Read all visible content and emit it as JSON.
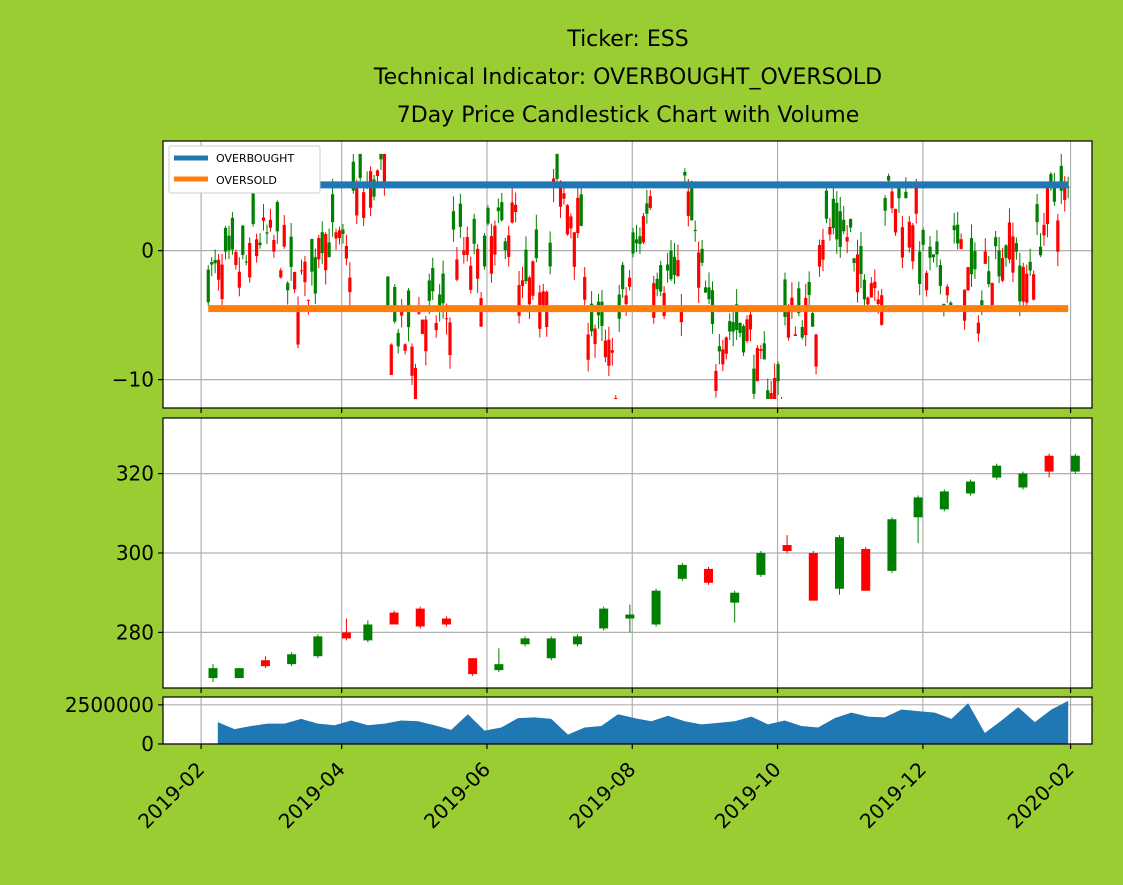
{
  "title": {
    "line1": "Ticker: ESS",
    "line2": "Technical Indicator: OVERBOUGHT_OVERSOLD",
    "line3": "7Day Price Candlestick Chart with Volume"
  },
  "colors": {
    "background": "#9acd32",
    "up": "#008000",
    "down": "#ff0000",
    "overbought": "#1f77b4",
    "oversold": "#ff7f0e",
    "volume": "#1f77b4",
    "grid": "#b0b0b0"
  },
  "x_axis": {
    "ticks": [
      "2019-02",
      "2019-04",
      "2019-06",
      "2019-08",
      "2019-10",
      "2019-12",
      "2020-02"
    ]
  },
  "chart_data": [
    {
      "panel": "indicator",
      "type": "candlestick",
      "x_range": [
        "2019-02-04",
        "2020-01-31"
      ],
      "ylim": [
        -12.2,
        8.5
      ],
      "yticks": [
        0,
        -10
      ],
      "ytick_labels": [
        "0",
        "−10"
      ],
      "legend": {
        "position": "top-left",
        "entries": [
          "OVERBOUGHT",
          "OVERSOLD"
        ]
      },
      "overbought": 5.1,
      "oversold": -4.5,
      "candle_count": 250,
      "candles": [
        {
          "date": "2019-02-08",
          "open": 1,
          "close": -2
        },
        {
          "date": "2019-02-22",
          "open": -1,
          "close": 1.5
        },
        {
          "date": "2019-03-08",
          "open": 0,
          "close": -3
        },
        {
          "date": "2019-03-22",
          "open": -2,
          "close": 2
        },
        {
          "date": "2019-04-05",
          "open": -1,
          "close": 4
        },
        {
          "date": "2019-04-19",
          "open": 6,
          "close": -5
        },
        {
          "date": "2019-05-03",
          "open": -8,
          "close": -5
        },
        {
          "date": "2019-05-17",
          "open": -5,
          "close": 1
        },
        {
          "date": "2019-05-31",
          "open": -2,
          "close": 0
        },
        {
          "date": "2019-06-14",
          "open": 3,
          "close": -4
        },
        {
          "date": "2019-06-28",
          "open": -1,
          "close": 5
        },
        {
          "date": "2019-07-12",
          "open": 2,
          "close": -4
        },
        {
          "date": "2019-07-26",
          "open": -10,
          "close": -6
        },
        {
          "date": "2019-08-09",
          "open": 5,
          "close": -1
        },
        {
          "date": "2019-08-23",
          "open": -3,
          "close": 5
        },
        {
          "date": "2019-09-06",
          "open": -9,
          "close": -6
        },
        {
          "date": "2019-09-20",
          "open": -6,
          "close": -9
        },
        {
          "date": "2019-10-04",
          "open": -11,
          "close": -5
        },
        {
          "date": "2019-10-18",
          "open": -5,
          "close": 2
        },
        {
          "date": "2019-11-01",
          "open": 1,
          "close": -2
        },
        {
          "date": "2019-11-15",
          "open": -2,
          "close": 4
        },
        {
          "date": "2019-11-29",
          "open": 3,
          "close": -1
        },
        {
          "date": "2019-12-13",
          "open": -3,
          "close": 1
        },
        {
          "date": "2019-12-27",
          "open": -5,
          "close": -1
        },
        {
          "date": "2020-01-10",
          "open": 1,
          "close": -4
        },
        {
          "date": "2020-01-24",
          "open": 4,
          "close": -1
        }
      ]
    },
    {
      "panel": "price",
      "type": "candlestick",
      "x_range": [
        "2019-02-04",
        "2020-01-31"
      ],
      "ylim": [
        266,
        334
      ],
      "yticks": [
        280,
        300,
        320
      ],
      "candles": [
        {
          "date": "2019-02-06",
          "open": 268.5,
          "close": 271,
          "high": 272,
          "low": 267.5
        },
        {
          "date": "2019-02-17",
          "open": 268.5,
          "close": 271,
          "high": 271,
          "low": 268.5
        },
        {
          "date": "2019-02-28",
          "open": 273,
          "close": 271.5,
          "high": 274,
          "low": 271
        },
        {
          "date": "2019-03-11",
          "open": 272,
          "close": 274.5,
          "high": 275,
          "low": 271.5
        },
        {
          "date": "2019-03-22",
          "open": 274,
          "close": 279,
          "high": 279.5,
          "low": 273.5
        },
        {
          "date": "2019-04-03",
          "open": 280,
          "close": 278.5,
          "high": 283.5,
          "low": 278
        },
        {
          "date": "2019-04-12",
          "open": 278,
          "close": 282,
          "high": 283,
          "low": 277.5
        },
        {
          "date": "2019-04-23",
          "open": 285,
          "close": 282,
          "high": 285.5,
          "low": 282
        },
        {
          "date": "2019-05-04",
          "open": 286,
          "close": 281.5,
          "high": 286.5,
          "low": 281
        },
        {
          "date": "2019-05-15",
          "open": 283.5,
          "close": 282,
          "high": 284,
          "low": 281.5
        },
        {
          "date": "2019-05-26",
          "open": 273.5,
          "close": 269.5,
          "high": 273.5,
          "low": 269
        },
        {
          "date": "2019-06-06",
          "open": 270.5,
          "close": 272,
          "high": 276,
          "low": 270
        },
        {
          "date": "2019-06-17",
          "open": 277,
          "close": 278.5,
          "high": 279,
          "low": 276.5
        },
        {
          "date": "2019-06-28",
          "open": 273.5,
          "close": 278.5,
          "high": 279,
          "low": 273
        },
        {
          "date": "2019-07-09",
          "open": 277,
          "close": 279,
          "high": 279.5,
          "low": 276.5
        },
        {
          "date": "2019-07-20",
          "open": 281,
          "close": 286,
          "high": 286.5,
          "low": 280.5
        },
        {
          "date": "2019-07-31",
          "open": 283.5,
          "close": 284.5,
          "high": 287,
          "low": 280
        },
        {
          "date": "2019-08-11",
          "open": 282,
          "close": 290.5,
          "high": 291,
          "low": 281.5
        },
        {
          "date": "2019-08-22",
          "open": 293.5,
          "close": 297,
          "high": 297.5,
          "low": 293
        },
        {
          "date": "2019-09-02",
          "open": 296,
          "close": 292.5,
          "high": 296.5,
          "low": 292
        },
        {
          "date": "2019-09-13",
          "open": 287.5,
          "close": 290,
          "high": 290.5,
          "low": 282.5
        },
        {
          "date": "2019-09-24",
          "open": 294.5,
          "close": 300,
          "high": 300.5,
          "low": 294
        },
        {
          "date": "2019-10-05",
          "open": 302,
          "close": 300.5,
          "high": 304.5,
          "low": 300
        },
        {
          "date": "2019-10-16",
          "open": 300,
          "close": 288,
          "high": 300.5,
          "low": 288
        },
        {
          "date": "2019-10-27",
          "open": 291,
          "close": 304,
          "high": 304.5,
          "low": 289.5
        },
        {
          "date": "2019-11-07",
          "open": 301,
          "close": 290.5,
          "high": 301.5,
          "low": 290.5
        },
        {
          "date": "2019-11-18",
          "open": 295.5,
          "close": 308.5,
          "high": 309,
          "low": 295
        },
        {
          "date": "2019-11-29",
          "open": 309,
          "close": 314,
          "high": 314.5,
          "low": 302.5
        },
        {
          "date": "2019-12-10",
          "open": 311,
          "close": 315.5,
          "high": 316,
          "low": 310.5
        },
        {
          "date": "2019-12-21",
          "open": 315,
          "close": 318,
          "high": 318.5,
          "low": 314.5
        },
        {
          "date": "2020-01-01",
          "open": 319,
          "close": 322,
          "high": 322.5,
          "low": 318.5
        },
        {
          "date": "2020-01-12",
          "open": 316.5,
          "close": 320,
          "high": 320.5,
          "low": 316
        },
        {
          "date": "2020-01-23",
          "open": 324.5,
          "close": 320.5,
          "high": 325,
          "low": 319
        },
        {
          "date": "2020-02-03",
          "open": 320.5,
          "close": 324.5,
          "high": 325,
          "low": 320
        }
      ]
    },
    {
      "panel": "volume",
      "type": "area",
      "ylim": [
        0,
        3000000
      ],
      "yticks": [
        0,
        2500000
      ],
      "x": [
        "2019-02-08",
        "2019-02-15",
        "2019-02-22",
        "2019-03-01",
        "2019-03-08",
        "2019-03-15",
        "2019-03-22",
        "2019-03-29",
        "2019-04-05",
        "2019-04-12",
        "2019-04-19",
        "2019-04-26",
        "2019-05-03",
        "2019-05-10",
        "2019-05-17",
        "2019-05-24",
        "2019-05-31",
        "2019-06-07",
        "2019-06-14",
        "2019-06-21",
        "2019-06-28",
        "2019-07-05",
        "2019-07-12",
        "2019-07-19",
        "2019-07-26",
        "2019-08-02",
        "2019-08-09",
        "2019-08-16",
        "2019-08-23",
        "2019-08-30",
        "2019-09-06",
        "2019-09-13",
        "2019-09-20",
        "2019-09-27",
        "2019-10-04",
        "2019-10-11",
        "2019-10-18",
        "2019-10-25",
        "2019-11-01",
        "2019-11-08",
        "2019-11-15",
        "2019-11-22",
        "2019-11-29",
        "2019-12-06",
        "2019-12-13",
        "2019-12-20",
        "2019-12-27",
        "2020-01-03",
        "2020-01-10",
        "2020-01-17",
        "2020-01-24",
        "2020-01-31"
      ],
      "values": [
        1400000,
        950000,
        1150000,
        1300000,
        1300000,
        1600000,
        1300000,
        1200000,
        1500000,
        1200000,
        1300000,
        1500000,
        1450000,
        1200000,
        900000,
        1900000,
        850000,
        1050000,
        1650000,
        1700000,
        1600000,
        600000,
        1050000,
        1150000,
        1900000,
        1650000,
        1450000,
        1800000,
        1450000,
        1250000,
        1350000,
        1450000,
        1750000,
        1250000,
        1500000,
        1150000,
        1050000,
        1650000,
        2000000,
        1750000,
        1700000,
        2200000,
        2100000,
        2000000,
        1600000,
        2600000,
        700000,
        1500000,
        2350000,
        1400000,
        2200000,
        2750000
      ]
    }
  ]
}
